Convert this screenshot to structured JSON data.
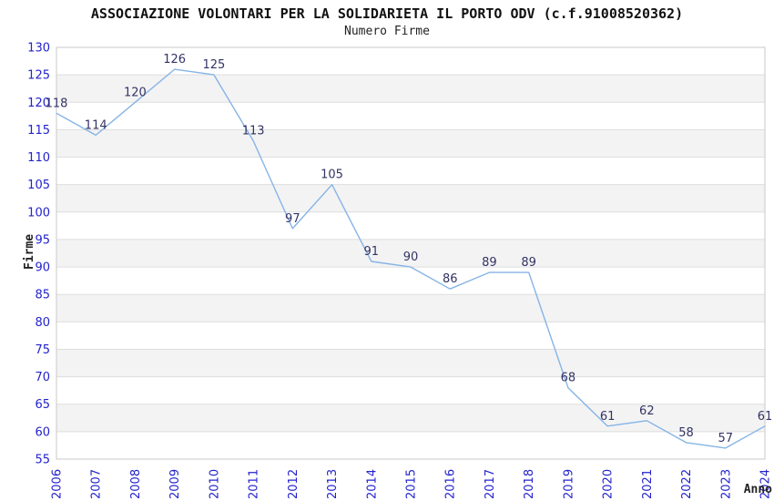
{
  "header": {
    "title": "ASSOCIAZIONE VOLONTARI PER LA SOLIDARIETA IL PORTO ODV (c.f.91008520362)",
    "subtitle": "Numero Firme"
  },
  "chart_data": {
    "type": "line",
    "title": "ASSOCIAZIONE VOLONTARI PER LA SOLIDARIETA IL PORTO ODV (c.f.91008520362)",
    "subtitle": "Numero Firme",
    "xlabel": "Anno",
    "ylabel": "Firme",
    "x": [
      2006,
      2007,
      2008,
      2009,
      2010,
      2011,
      2012,
      2013,
      2014,
      2015,
      2016,
      2017,
      2018,
      2019,
      2020,
      2021,
      2022,
      2023,
      2024
    ],
    "values": [
      118,
      114,
      120,
      126,
      125,
      113,
      97,
      105,
      91,
      90,
      86,
      89,
      89,
      68,
      61,
      62,
      58,
      57,
      61
    ],
    "ylim": [
      55,
      130
    ],
    "ytick_step": 5,
    "grid": true,
    "bands": true,
    "legend": false,
    "point_labels": true,
    "colors": {
      "line": "#85b4e6",
      "point_label": "#333366",
      "tick_label": "#2323cc",
      "band_fill": "#f3f3f3",
      "gridline": "#dedede",
      "plot_border": "#c9c9c9",
      "title": "#111111",
      "axis_title": "#222222",
      "background": "#ffffff"
    }
  }
}
